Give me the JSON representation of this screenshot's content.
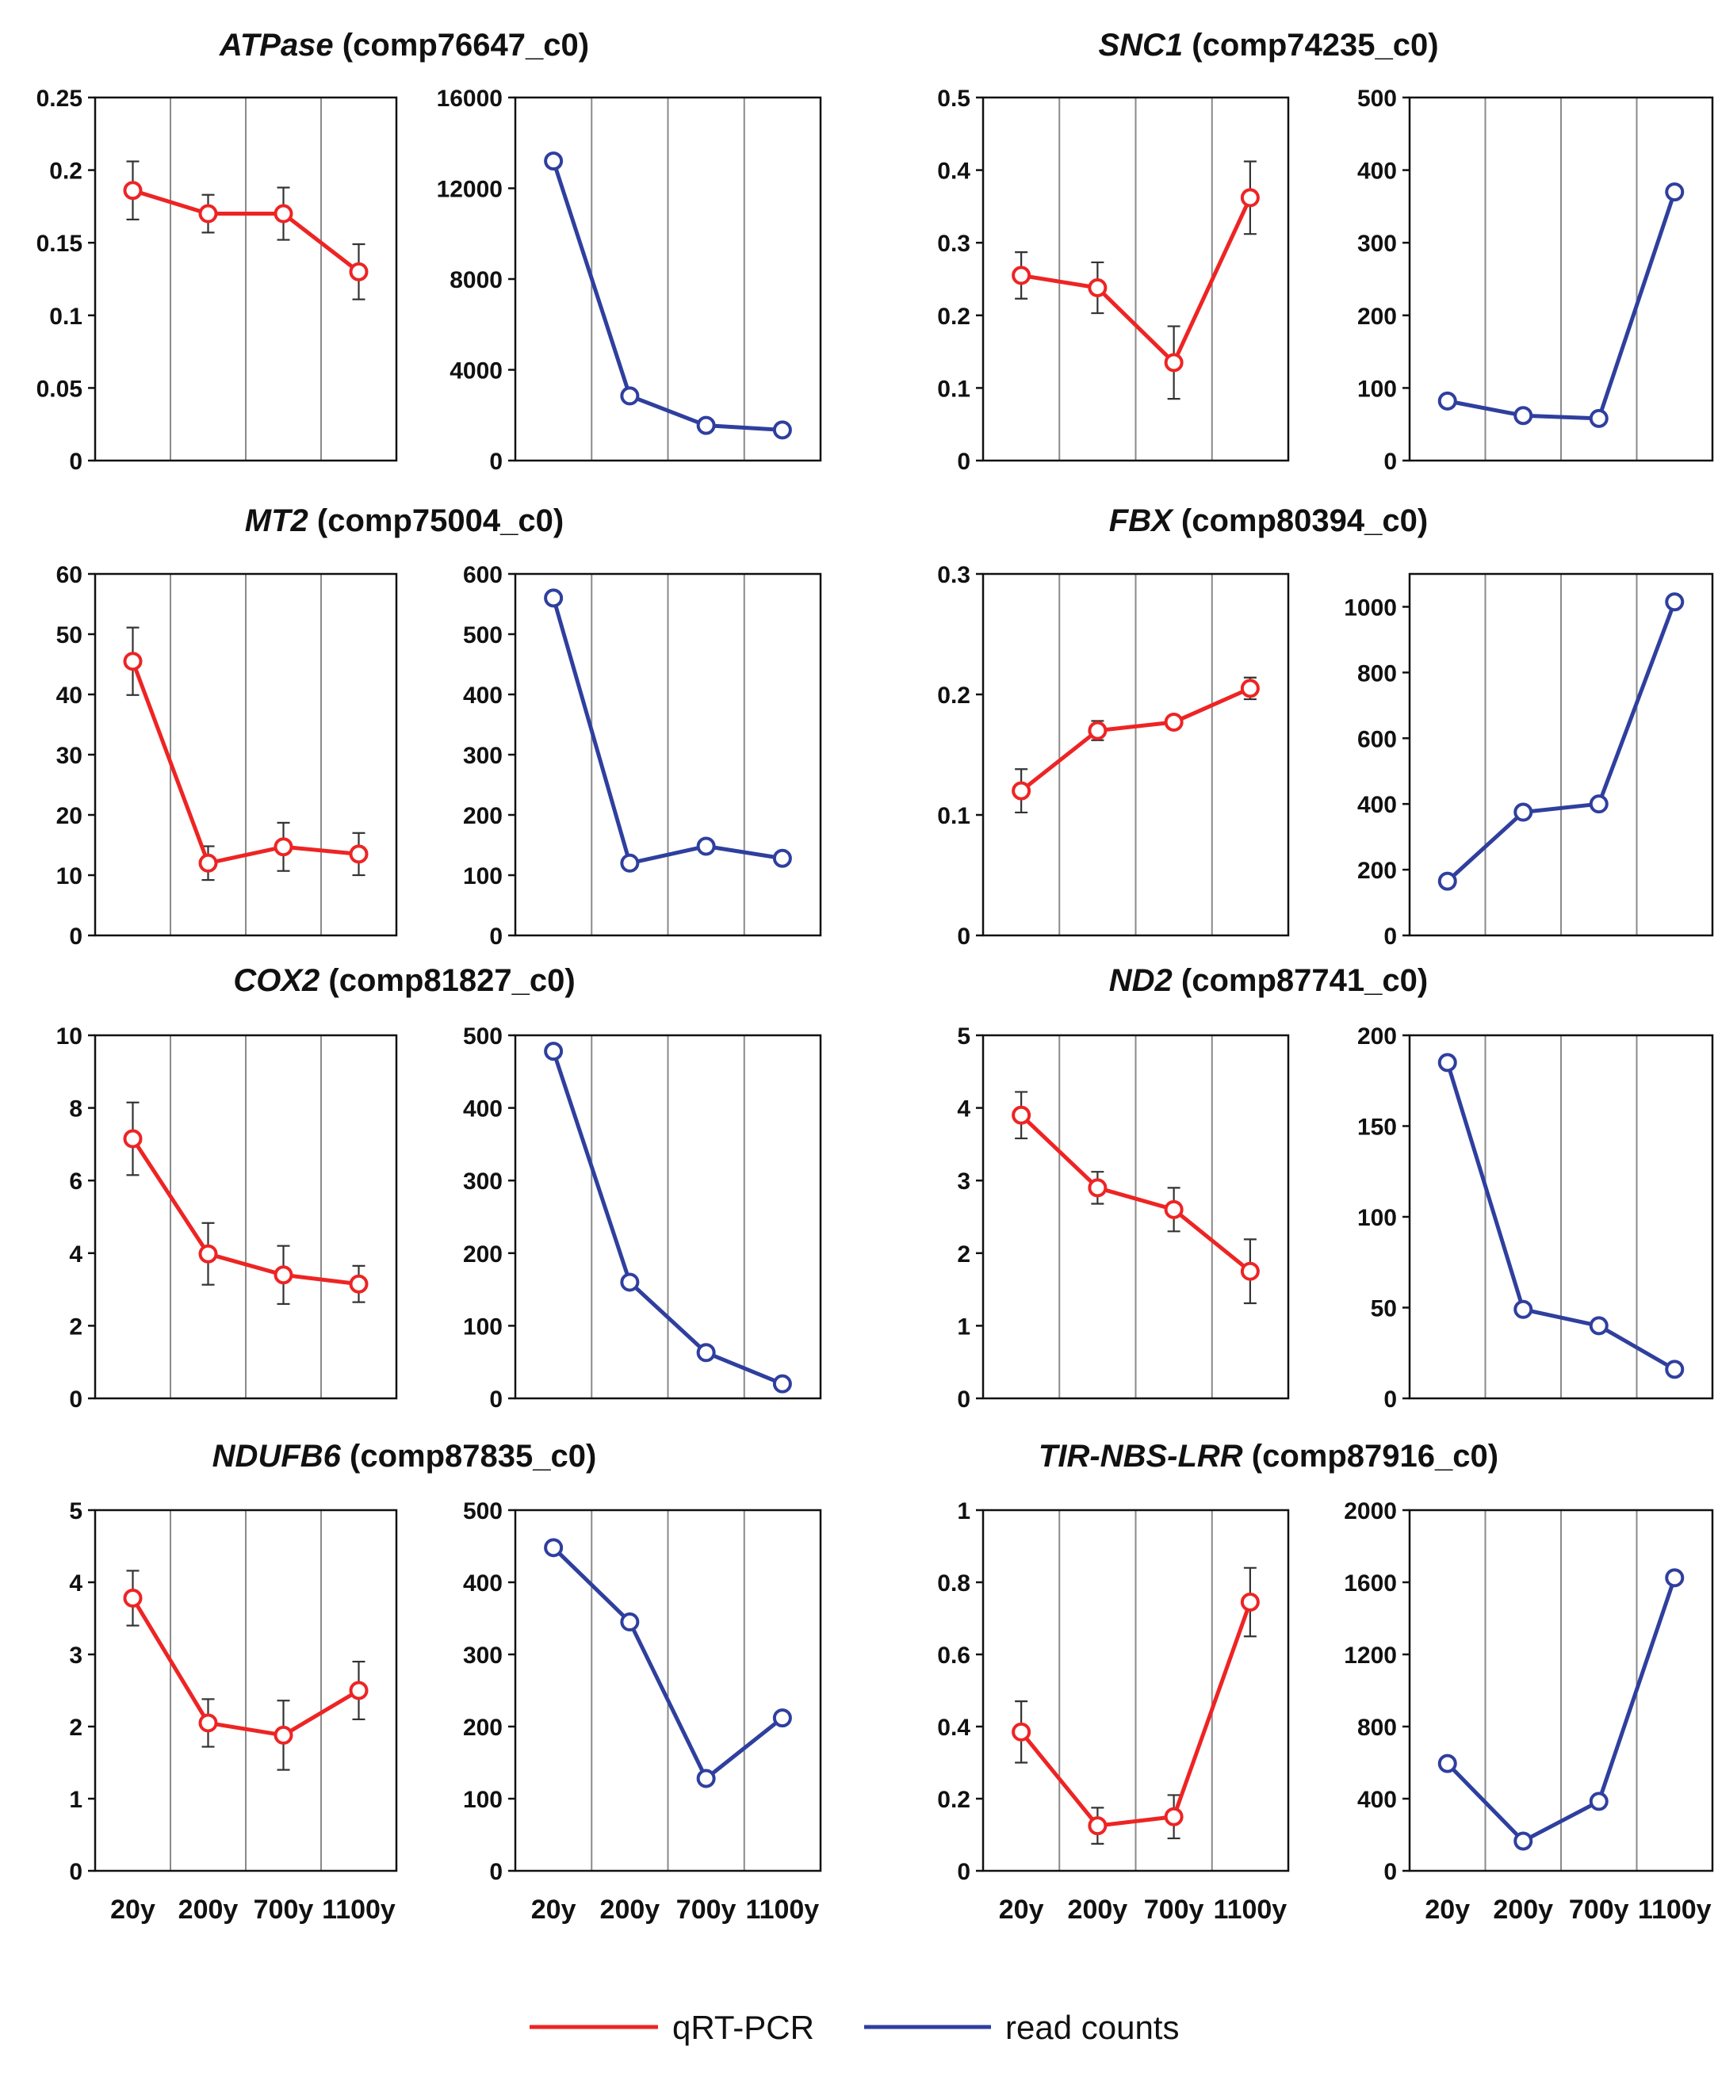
{
  "figure": {
    "x_categories": [
      "20y",
      "200y",
      "700y",
      "1100y"
    ],
    "legend": [
      {
        "label": "qRT-PCR",
        "color": "#ee2424"
      },
      {
        "label": "read counts",
        "color": "#2f3f9e"
      }
    ]
  },
  "colors": {
    "qrt": "#ee2424",
    "read": "#2f3f9e",
    "grid": "#8a8a8a",
    "axis": "#111111"
  },
  "chart_data": [
    {
      "type": "line",
      "gene": "ATPase",
      "id": "(comp76647_c0)",
      "categories": [
        "20y",
        "200y",
        "700y",
        "1100y"
      ],
      "show_xlabels": false,
      "qrt_pcr": {
        "name": "qRT-PCR",
        "values": [
          0.186,
          0.17,
          0.17,
          0.13
        ],
        "errors": [
          0.02,
          0.013,
          0.018,
          0.019
        ],
        "ylim": [
          0,
          0.25
        ],
        "yticks": [
          0,
          0.05,
          0.1,
          0.15,
          0.2,
          0.25
        ],
        "yticklabels": [
          "0",
          "0.05",
          "0.1",
          "0.15",
          "0.2",
          "0.25"
        ]
      },
      "read_counts": {
        "name": "read counts",
        "values": [
          13200,
          2850,
          1550,
          1350
        ],
        "ylim": [
          0,
          16000
        ],
        "yticks": [
          0,
          4000,
          8000,
          12000,
          16000
        ],
        "yticklabels": [
          "0",
          "4000",
          "8000",
          "12000",
          "16000"
        ]
      }
    },
    {
      "type": "line",
      "gene": "SNC1",
      "id": "(comp74235_c0)",
      "categories": [
        "20y",
        "200y",
        "700y",
        "1100y"
      ],
      "show_xlabels": false,
      "qrt_pcr": {
        "name": "qRT-PCR",
        "values": [
          0.255,
          0.238,
          0.135,
          0.362
        ],
        "errors": [
          0.032,
          0.035,
          0.05,
          0.05
        ],
        "ylim": [
          0,
          0.5
        ],
        "yticks": [
          0,
          0.1,
          0.2,
          0.3,
          0.4,
          0.5
        ],
        "yticklabels": [
          "0",
          "0.1",
          "0.2",
          "0.3",
          "0.4",
          "0.5"
        ]
      },
      "read_counts": {
        "name": "read counts",
        "values": [
          82,
          62,
          58,
          370
        ],
        "ylim": [
          0,
          500
        ],
        "yticks": [
          0,
          100,
          200,
          300,
          400,
          500
        ],
        "yticklabels": [
          "0",
          "100",
          "200",
          "300",
          "400",
          "500"
        ]
      }
    },
    {
      "type": "line",
      "gene": "MT2",
      "id": "(comp75004_c0)",
      "categories": [
        "20y",
        "200y",
        "700y",
        "1100y"
      ],
      "show_xlabels": false,
      "qrt_pcr": {
        "name": "qRT-PCR",
        "values": [
          45.5,
          12.0,
          14.7,
          13.5
        ],
        "errors": [
          5.6,
          2.8,
          4.0,
          3.5
        ],
        "ylim": [
          0,
          60
        ],
        "yticks": [
          0,
          10,
          20,
          30,
          40,
          50,
          60
        ],
        "yticklabels": [
          "0",
          "10",
          "20",
          "30",
          "40",
          "50",
          "60"
        ]
      },
      "read_counts": {
        "name": "read counts",
        "values": [
          560,
          120,
          148,
          128
        ],
        "ylim": [
          0,
          600
        ],
        "yticks": [
          0,
          100,
          200,
          300,
          400,
          500,
          600
        ],
        "yticklabels": [
          "0",
          "100",
          "200",
          "300",
          "400",
          "500",
          "600"
        ]
      }
    },
    {
      "type": "line",
      "gene": "FBX",
      "id": "(comp80394_c0)",
      "categories": [
        "20y",
        "200y",
        "700y",
        "1100y"
      ],
      "show_xlabels": false,
      "qrt_pcr": {
        "name": "qRT-PCR",
        "values": [
          0.12,
          0.17,
          0.177,
          0.205
        ],
        "errors": [
          0.018,
          0.008,
          0.003,
          0.009
        ],
        "ylim": [
          0,
          0.3
        ],
        "yticks": [
          0,
          0.1,
          0.2,
          0.3
        ],
        "yticklabels": [
          "0",
          "0.1",
          "0.2",
          "0.3"
        ]
      },
      "read_counts": {
        "name": "read counts",
        "values": [
          165,
          375,
          400,
          1015
        ],
        "ylim": [
          0,
          1100
        ],
        "yticks": [
          0,
          200,
          400,
          600,
          800,
          1000
        ],
        "yticklabels": [
          "0",
          "200",
          "400",
          "600",
          "800",
          "1000"
        ]
      }
    },
    {
      "type": "line",
      "gene": "COX2",
      "id": "(comp81827_c0)",
      "categories": [
        "20y",
        "200y",
        "700y",
        "1100y"
      ],
      "show_xlabels": false,
      "qrt_pcr": {
        "name": "qRT-PCR",
        "values": [
          7.15,
          3.98,
          3.4,
          3.15
        ],
        "errors": [
          1.0,
          0.85,
          0.8,
          0.5
        ],
        "ylim": [
          0,
          10
        ],
        "yticks": [
          0,
          2,
          4,
          6,
          8,
          10
        ],
        "yticklabels": [
          "0",
          "2",
          "4",
          "6",
          "8",
          "10"
        ]
      },
      "read_counts": {
        "name": "read counts",
        "values": [
          478,
          160,
          63,
          20
        ],
        "ylim": [
          0,
          500
        ],
        "yticks": [
          0,
          100,
          200,
          300,
          400,
          500
        ],
        "yticklabels": [
          "0",
          "100",
          "200",
          "300",
          "400",
          "500"
        ]
      }
    },
    {
      "type": "line",
      "gene": "ND2",
      "id": "(comp87741_c0)",
      "categories": [
        "20y",
        "200y",
        "700y",
        "1100y"
      ],
      "show_xlabels": false,
      "qrt_pcr": {
        "name": "qRT-PCR",
        "values": [
          3.9,
          2.9,
          2.6,
          1.75
        ],
        "errors": [
          0.32,
          0.22,
          0.3,
          0.44
        ],
        "ylim": [
          0,
          5
        ],
        "yticks": [
          0,
          1,
          2,
          3,
          4,
          5
        ],
        "yticklabels": [
          "0",
          "1",
          "2",
          "3",
          "4",
          "5"
        ]
      },
      "read_counts": {
        "name": "read counts",
        "values": [
          185,
          49,
          40,
          16
        ],
        "ylim": [
          0,
          200
        ],
        "yticks": [
          0,
          50,
          100,
          150,
          200
        ],
        "yticklabels": [
          "0",
          "50",
          "100",
          "150",
          "200"
        ]
      }
    },
    {
      "type": "line",
      "gene": "NDUFB6",
      "id": "(comp87835_c0)",
      "categories": [
        "20y",
        "200y",
        "700y",
        "1100y"
      ],
      "show_xlabels": true,
      "qrt_pcr": {
        "name": "qRT-PCR",
        "values": [
          3.78,
          2.05,
          1.88,
          2.5
        ],
        "errors": [
          0.38,
          0.33,
          0.48,
          0.4
        ],
        "ylim": [
          0,
          5
        ],
        "yticks": [
          0,
          1,
          2,
          3,
          4,
          5
        ],
        "yticklabels": [
          "0",
          "1",
          "2",
          "3",
          "4",
          "5"
        ]
      },
      "read_counts": {
        "name": "read counts",
        "values": [
          448,
          345,
          128,
          212
        ],
        "ylim": [
          0,
          500
        ],
        "yticks": [
          0,
          100,
          200,
          300,
          400,
          500
        ],
        "yticklabels": [
          "0",
          "100",
          "200",
          "300",
          "400",
          "500"
        ]
      }
    },
    {
      "type": "line",
      "gene": "TIR-NBS-LRR",
      "id": "(comp87916_c0)",
      "categories": [
        "20y",
        "200y",
        "700y",
        "1100y"
      ],
      "show_xlabels": true,
      "qrt_pcr": {
        "name": "qRT-PCR",
        "values": [
          0.385,
          0.125,
          0.15,
          0.745
        ],
        "errors": [
          0.085,
          0.05,
          0.06,
          0.095
        ],
        "ylim": [
          0,
          1
        ],
        "yticks": [
          0,
          0.2,
          0.4,
          0.6,
          0.8,
          1
        ],
        "yticklabels": [
          "0",
          "0.2",
          "0.4",
          "0.6",
          "0.8",
          "1"
        ]
      },
      "read_counts": {
        "name": "read counts",
        "values": [
          595,
          165,
          385,
          1625
        ],
        "ylim": [
          0,
          2000
        ],
        "yticks": [
          0,
          400,
          800,
          1200,
          1600,
          2000
        ],
        "yticklabels": [
          "0",
          "400",
          "800",
          "1200",
          "1600",
          "2000"
        ]
      }
    }
  ]
}
